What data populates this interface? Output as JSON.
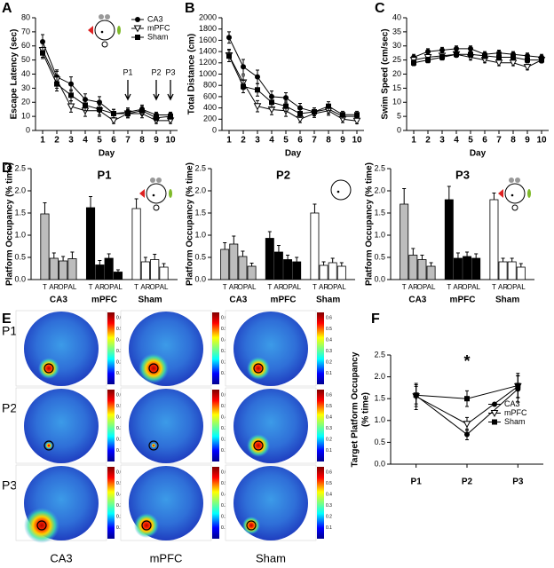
{
  "chart_data": [
    {
      "type": "line",
      "panel": "A",
      "ylabel": "Escape Latency (sec)",
      "xlabel": "Day",
      "x": [
        1,
        2,
        3,
        4,
        5,
        6,
        7,
        8,
        9,
        10
      ],
      "xlim": [
        0.5,
        10.5
      ],
      "xticks": [
        1,
        2,
        3,
        4,
        5,
        6,
        7,
        8,
        9,
        10
      ],
      "ylim": [
        0,
        80
      ],
      "yticks": [
        0,
        10,
        20,
        30,
        40,
        50,
        60,
        70,
        80
      ],
      "legend": "top-right",
      "series": [
        {
          "name": "CA3",
          "marker": "circle",
          "color": "#000000",
          "values": [
            63,
            38,
            33,
            22,
            20,
            12,
            13,
            15,
            11,
            11
          ],
          "errors": [
            5,
            5,
            5,
            4,
            4,
            3,
            3,
            3,
            2,
            2
          ]
        },
        {
          "name": "mPFC",
          "marker": "triangle-open",
          "color": "#000000",
          "values": [
            57,
            36,
            17,
            14,
            14,
            7,
            12,
            12,
            7,
            7
          ],
          "errors": [
            5,
            6,
            4,
            4,
            4,
            2,
            3,
            3,
            2,
            2
          ]
        },
        {
          "name": "Sham",
          "marker": "square",
          "color": "#000000",
          "values": [
            55,
            33,
            25,
            18,
            15,
            12,
            12,
            14,
            9,
            10
          ],
          "errors": [
            4,
            5,
            4,
            4,
            4,
            3,
            3,
            3,
            2,
            2
          ]
        }
      ],
      "annotations": [
        {
          "text": "P1",
          "x": 7
        },
        {
          "text": "P2",
          "x": 9
        },
        {
          "text": "P3",
          "x": 10
        }
      ]
    },
    {
      "type": "line",
      "panel": "B",
      "ylabel": "Total Distance (cm)",
      "xlabel": "Day",
      "x": [
        1,
        2,
        3,
        4,
        5,
        6,
        7,
        8,
        9,
        10
      ],
      "xlim": [
        0.5,
        10.5
      ],
      "xticks": [
        1,
        2,
        3,
        4,
        5,
        6,
        7,
        8,
        9,
        10
      ],
      "ylim": [
        0,
        2000
      ],
      "yticks": [
        0,
        200,
        400,
        600,
        800,
        1000,
        1200,
        1400,
        1600,
        1800,
        2000
      ],
      "series": [
        {
          "name": "CA3",
          "marker": "circle",
          "color": "#000000",
          "values": [
            1650,
            1130,
            950,
            600,
            580,
            400,
            330,
            380,
            250,
            250
          ],
          "errors": [
            100,
            130,
            120,
            100,
            90,
            80,
            70,
            80,
            60,
            60
          ]
        },
        {
          "name": "mPFC",
          "marker": "triangle-open",
          "color": "#000000",
          "values": [
            1330,
            850,
            430,
            370,
            350,
            200,
            300,
            350,
            200,
            170
          ],
          "errors": [
            110,
            120,
            100,
            90,
            100,
            60,
            70,
            80,
            60,
            50
          ]
        },
        {
          "name": "Sham",
          "marker": "square",
          "color": "#000000",
          "values": [
            1320,
            780,
            720,
            500,
            430,
            300,
            330,
            430,
            280,
            280
          ],
          "errors": [
            100,
            110,
            110,
            90,
            90,
            70,
            70,
            80,
            60,
            60
          ]
        }
      ]
    },
    {
      "type": "line",
      "panel": "C",
      "ylabel": "Swim Speed (cm/sec)",
      "xlabel": "Day",
      "x": [
        1,
        2,
        3,
        4,
        5,
        6,
        7,
        8,
        9,
        10
      ],
      "xlim": [
        0.5,
        10.5
      ],
      "xticks": [
        1,
        2,
        3,
        4,
        5,
        6,
        7,
        8,
        9,
        10
      ],
      "ylim": [
        0,
        40
      ],
      "yticks": [
        0,
        5,
        10,
        15,
        20,
        25,
        30,
        35,
        40
      ],
      "series": [
        {
          "name": "CA3",
          "marker": "circle",
          "color": "#000000",
          "values": [
            26,
            28,
            28.5,
            29,
            29,
            27,
            27.5,
            27,
            26.5,
            26
          ],
          "errors": [
            1,
            1,
            1,
            1,
            1,
            1,
            1,
            1,
            1,
            1
          ]
        },
        {
          "name": "mPFC",
          "marker": "triangle-open",
          "color": "#000000",
          "values": [
            25,
            26,
            26.5,
            27,
            26,
            25,
            24,
            24,
            22.5,
            25
          ],
          "errors": [
            1,
            1,
            1,
            1,
            1,
            1,
            1,
            1,
            1,
            1
          ]
        },
        {
          "name": "Sham",
          "marker": "square",
          "color": "#000000",
          "values": [
            24,
            25,
            26,
            27,
            27,
            26.5,
            26,
            26,
            25,
            25
          ],
          "errors": [
            1,
            1,
            1,
            1,
            1,
            1,
            1,
            1,
            1,
            1
          ]
        }
      ]
    },
    {
      "type": "grouped_bar",
      "panel": "D",
      "title": "P1",
      "ylabel": "Platform Occupancy (% time)",
      "ylim": [
        0,
        2.5
      ],
      "yticks": [
        {
          "value": 0,
          "label": "0.0"
        },
        0.5,
        {
          "value": 1,
          "label": "1.0"
        },
        1.5,
        {
          "value": 2,
          "label": "2.0"
        },
        2.5
      ],
      "categories": [
        "T",
        "AR",
        "OP",
        "AL"
      ],
      "groups": [
        {
          "name": "CA3",
          "color": "#bdbdbd",
          "values": [
            1.48,
            0.48,
            0.42,
            0.47
          ],
          "errors": [
            0.25,
            0.12,
            0.1,
            0.15
          ]
        },
        {
          "name": "mPFC",
          "color": "#000000",
          "values": [
            1.62,
            0.33,
            0.48,
            0.17
          ],
          "errors": [
            0.25,
            0.1,
            0.1,
            0.05
          ]
        },
        {
          "name": "Sham",
          "color": "#ffffff",
          "values": [
            1.6,
            0.4,
            0.45,
            0.28
          ],
          "errors": [
            0.22,
            0.1,
            0.12,
            0.08
          ]
        }
      ]
    },
    {
      "type": "grouped_bar",
      "title": "P2",
      "ylabel": "Platform Occupancy (% time)",
      "ylim": [
        0,
        2.5
      ],
      "yticks": [
        {
          "value": 0,
          "label": "0.0"
        },
        0.5,
        {
          "value": 1,
          "label": "1.0"
        },
        1.5,
        {
          "value": 2,
          "label": "2.0"
        },
        2.5
      ],
      "categories": [
        "T",
        "AR",
        "OP",
        "AL"
      ],
      "groups": [
        {
          "name": "CA3",
          "color": "#bdbdbd",
          "values": [
            0.68,
            0.8,
            0.52,
            0.3
          ],
          "errors": [
            0.15,
            0.18,
            0.12,
            0.07
          ]
        },
        {
          "name": "mPFC",
          "color": "#000000",
          "values": [
            0.93,
            0.62,
            0.45,
            0.4
          ],
          "errors": [
            0.15,
            0.15,
            0.1,
            0.1
          ]
        },
        {
          "name": "Sham",
          "color": "#ffffff",
          "values": [
            1.5,
            0.32,
            0.38,
            0.3
          ],
          "errors": [
            0.2,
            0.08,
            0.1,
            0.08
          ]
        }
      ]
    },
    {
      "type": "grouped_bar",
      "title": "P3",
      "ylabel": "Platform Occupancy (% time)",
      "ylim": [
        0,
        2.5
      ],
      "yticks": [
        {
          "value": 0,
          "label": "0.0"
        },
        0.5,
        {
          "value": 1,
          "label": "1.0"
        },
        1.5,
        {
          "value": 2,
          "label": "2.0"
        },
        2.5
      ],
      "categories": [
        "T",
        "AR",
        "OP",
        "AL"
      ],
      "groups": [
        {
          "name": "CA3",
          "color": "#bdbdbd",
          "values": [
            1.7,
            0.55,
            0.45,
            0.3
          ],
          "errors": [
            0.35,
            0.15,
            0.1,
            0.08
          ]
        },
        {
          "name": "mPFC",
          "color": "#000000",
          "values": [
            1.8,
            0.48,
            0.52,
            0.48
          ],
          "errors": [
            0.3,
            0.12,
            0.1,
            0.1
          ]
        },
        {
          "name": "Sham",
          "color": "#ffffff",
          "values": [
            1.8,
            0.4,
            0.4,
            0.28
          ],
          "errors": [
            0.15,
            0.08,
            0.08,
            0.08
          ]
        }
      ]
    },
    {
      "type": "heatmap",
      "panel": "E",
      "rows": [
        "P1",
        "P2",
        "P3"
      ],
      "columns": [
        "CA3",
        "mPFC",
        "Sham"
      ],
      "clim": [
        0,
        0.65
      ],
      "cticks": [
        0.1,
        0.2,
        0.3,
        0.4,
        0.5,
        0.6
      ],
      "colormap": "jet"
    },
    {
      "type": "line",
      "panel": "F",
      "ylabel": [
        "Target Platform Occupancy",
        "(% time)"
      ],
      "categories": [
        "P1",
        "P2",
        "P3"
      ],
      "ylim": [
        0,
        2.5
      ],
      "yticks": [
        {
          "value": 0,
          "label": "0.0"
        },
        0.5,
        {
          "value": 1,
          "label": "1.0"
        },
        1.5,
        {
          "value": 2,
          "label": "2.0"
        },
        2.5
      ],
      "legend": "center-right",
      "series": [
        {
          "name": "CA3",
          "marker": "circle",
          "color": "#000000",
          "values": [
            1.57,
            0.68,
            1.72
          ],
          "errors": [
            0.25,
            0.12,
            0.3
          ]
        },
        {
          "name": "mPFC",
          "marker": "triangle-open",
          "color": "#000000",
          "values": [
            1.55,
            0.92,
            1.78
          ],
          "errors": [
            0.3,
            0.15,
            0.25
          ]
        },
        {
          "name": "Sham",
          "marker": "square",
          "color": "#000000",
          "values": [
            1.58,
            1.5,
            1.8
          ],
          "errors": [
            0.2,
            0.18,
            0.28
          ]
        }
      ],
      "annotations": [
        {
          "text": "*",
          "x": "P2"
        }
      ]
    }
  ]
}
